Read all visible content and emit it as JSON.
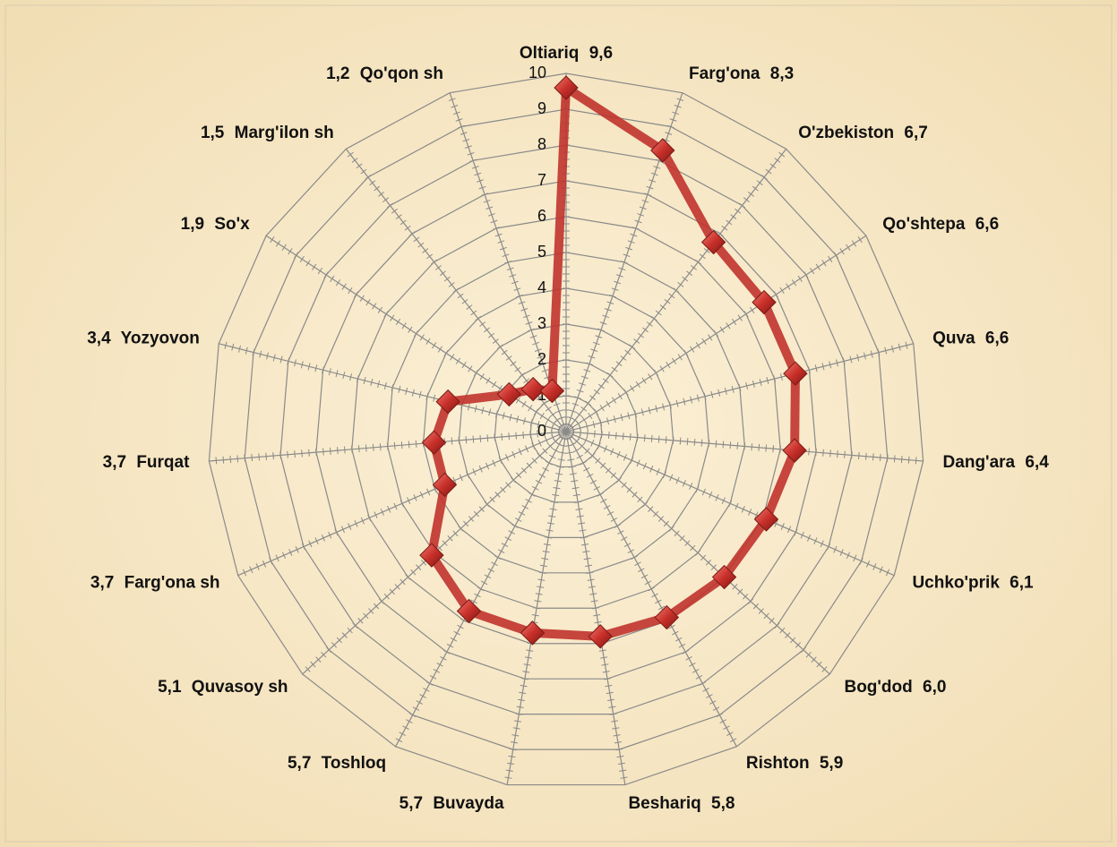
{
  "chart_data": {
    "type": "radar",
    "categories": [
      "Oltiariq",
      "Farg'ona",
      "O'zbekiston",
      "Qo'shtepa",
      "Quva",
      "Dang'ara",
      "Uchko'prik",
      "Bog'dod",
      "Rishton",
      "Beshariq",
      "Buvayda",
      "Toshloq",
      "Quvasoy sh",
      "Farg'ona sh",
      "Furqat",
      "Yozyovon",
      "So'x",
      "Marg'ilon sh",
      "Qo'qon sh"
    ],
    "values": [
      9.6,
      8.3,
      6.7,
      6.6,
      6.6,
      6.4,
      6.1,
      6.0,
      5.9,
      5.8,
      5.7,
      5.7,
      5.1,
      3.7,
      3.7,
      3.4,
      1.9,
      1.5,
      1.2
    ],
    "value_labels": [
      "9,6",
      "8,3",
      "6,7",
      "6,6",
      "6,6",
      "6,4",
      "6,1",
      "6,0",
      "5,9",
      "5,8",
      "5,7",
      "5,7",
      "5,1",
      "3,7",
      "3,7",
      "3,4",
      "1,9",
      "1,5",
      "1,2"
    ],
    "color": "#c0332c",
    "rlim": [
      0,
      10
    ],
    "rticks": [
      0,
      1,
      2,
      3,
      4,
      5,
      6,
      7,
      8,
      9,
      10
    ],
    "grid": true
  }
}
